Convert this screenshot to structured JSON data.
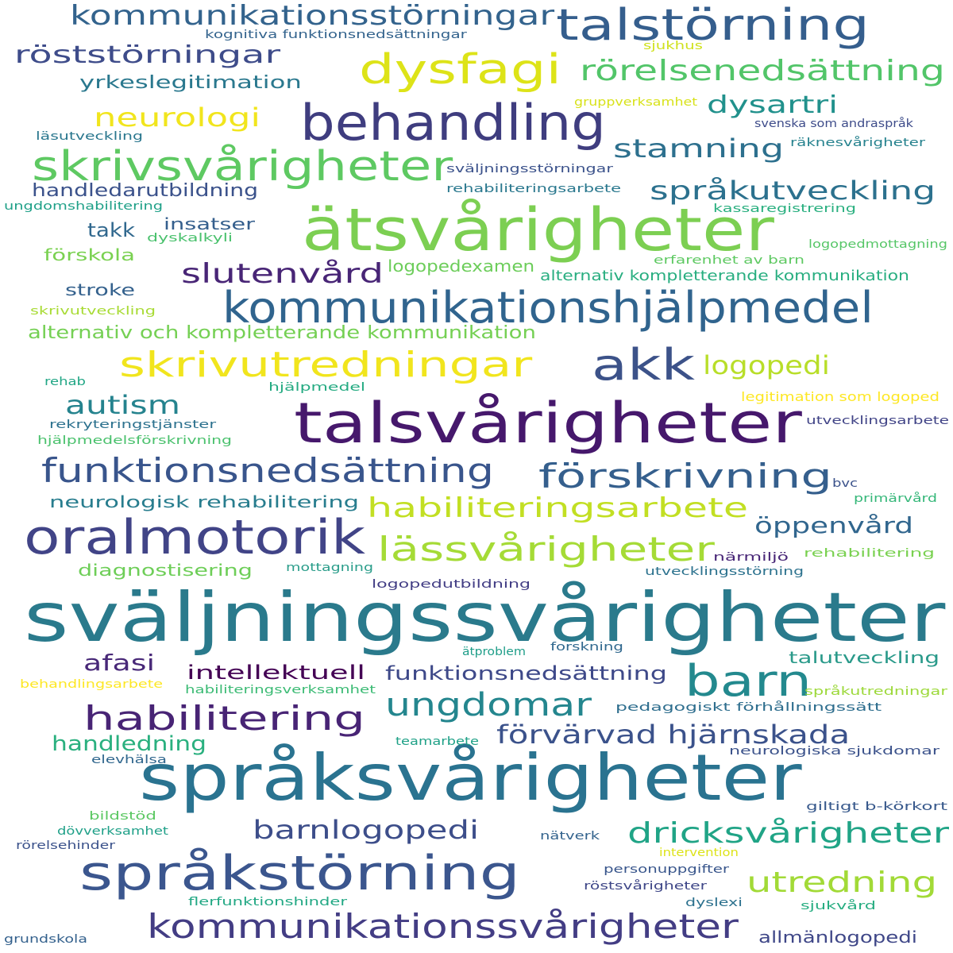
{
  "words": [
    {
      "text": "sväljningssvårigheter",
      "color": "#2a7a8c"
    },
    {
      "text": "språksvårigheter",
      "color": "#2a7390"
    },
    {
      "text": "ätsvårigheter",
      "color": "#7ccf52"
    },
    {
      "text": "talsvårigheter",
      "color": "#46186c"
    },
    {
      "text": "behandling",
      "color": "#3f3d7f"
    },
    {
      "text": "språkstörning",
      "color": "#3b568e"
    },
    {
      "text": "oralmotorik",
      "color": "#414487"
    },
    {
      "text": "kommunikationshjälpmedel",
      "color": "#30648e"
    },
    {
      "text": "talstörning",
      "color": "#355e8d"
    },
    {
      "text": "akk",
      "color": "#3c5289"
    },
    {
      "text": "barn",
      "color": "#23898e"
    },
    {
      "text": "skrivsvårigheter",
      "color": "#5ec962"
    },
    {
      "text": "dysfagi",
      "color": "#dde318"
    },
    {
      "text": "kommunikationssvårigheter",
      "color": "#433d84"
    },
    {
      "text": "skrivutredningar",
      "color": "#f1e51d"
    },
    {
      "text": "funktionsnedsättning",
      "color": "#39558c"
    },
    {
      "text": "förskrivning",
      "color": "#355f8d"
    },
    {
      "text": "lässvårigheter",
      "color": "#a5db36"
    },
    {
      "text": "habilitering",
      "color": "#482475"
    },
    {
      "text": "ungdomar",
      "color": "#24868e"
    },
    {
      "text": "kommunikationsstörningar",
      "color": "#33638d"
    },
    {
      "text": "rörelsenedsättning",
      "color": "#52c569"
    },
    {
      "text": "habiliteringsarbete",
      "color": "#c2df23"
    },
    {
      "text": "dricksvårigheter",
      "color": "#20a486"
    },
    {
      "text": "utredning",
      "color": "#a2da37"
    },
    {
      "text": "förvärvad hjärnskada",
      "color": "#3b528b"
    },
    {
      "text": "språkutveckling",
      "color": "#2c718e"
    },
    {
      "text": "röststörningar",
      "color": "#3e4c8a"
    },
    {
      "text": "stamning",
      "color": "#2d708e"
    },
    {
      "text": "slutenvård",
      "color": "#482576"
    },
    {
      "text": "barnlogopedi",
      "color": "#3d4e8a"
    },
    {
      "text": "neurologi",
      "color": "#f1e51d"
    },
    {
      "text": "autism",
      "color": "#25838e"
    },
    {
      "text": "logopedi",
      "color": "#b8de29"
    },
    {
      "text": "dysartri",
      "color": "#21918c"
    },
    {
      "text": "afasi",
      "color": "#482878"
    },
    {
      "text": "öppenvård",
      "color": "#31668e"
    },
    {
      "text": "intellektuell",
      "color": "#440154"
    },
    {
      "text": "funktionsnedsättning",
      "color": "#3e4989"
    },
    {
      "text": "allmänlogopedi",
      "color": "#3f4788"
    },
    {
      "text": "yrkeslegitimation",
      "color": "#2a788e"
    },
    {
      "text": "handledarutbildning",
      "color": "#3b528b"
    },
    {
      "text": "handledning",
      "color": "#2ab07f"
    },
    {
      "text": "alternativ och kompletterande kommunikation",
      "color": "#75d054"
    },
    {
      "text": "neurologisk rehabilitering",
      "color": "#287d8e"
    },
    {
      "text": "diagnostisering",
      "color": "#6ece58"
    },
    {
      "text": "insatser",
      "color": "#355f8d"
    },
    {
      "text": "takk",
      "color": "#31688e"
    },
    {
      "text": "förskola",
      "color": "#7ad151"
    },
    {
      "text": "stroke",
      "color": "#34618d"
    },
    {
      "text": "logopedexamen",
      "color": "#6ccd5a"
    },
    {
      "text": "talutveckling",
      "color": "#2a9a8a"
    },
    {
      "text": "alternativ kompletterande kommunikation",
      "color": "#28ae80"
    },
    {
      "text": "kognitiva funktionsnedsättningar",
      "color": "#33638d"
    },
    {
      "text": "sjukhus",
      "color": "#cfe11c"
    },
    {
      "text": "gruppverksamhet",
      "color": "#d8e219"
    },
    {
      "text": "svenska som andraspråk",
      "color": "#3e4c8a"
    },
    {
      "text": "räknesvårigheter",
      "color": "#26828e"
    },
    {
      "text": "läsutveckling",
      "color": "#2a778e"
    },
    {
      "text": "sväljningsstörningar",
      "color": "#3b528b"
    },
    {
      "text": "rehabiliteringsarbete",
      "color": "#2a788e"
    },
    {
      "text": "ungdomshabilitering",
      "color": "#1fa088"
    },
    {
      "text": "kassaregistrering",
      "color": "#29af7f"
    },
    {
      "text": "dyskalkyli",
      "color": "#4ac16d"
    },
    {
      "text": "logopedmottagning",
      "color": "#56c667"
    },
    {
      "text": "erfarenhet av barn",
      "color": "#5ec962"
    },
    {
      "text": "skrivutveckling",
      "color": "#a8db34"
    },
    {
      "text": "rehab",
      "color": "#21a685"
    },
    {
      "text": "hjälpmedel",
      "color": "#25ab82"
    },
    {
      "text": "legitimation som logoped",
      "color": "#fde725"
    },
    {
      "text": "rekryteringstjänster",
      "color": "#2c718e"
    },
    {
      "text": "utvecklingsarbete",
      "color": "#414487"
    },
    {
      "text": "hjälpmedelsförskrivning",
      "color": "#4ac16d"
    },
    {
      "text": "bvc",
      "color": "#3b528b"
    },
    {
      "text": "primärvård",
      "color": "#35b779"
    },
    {
      "text": "närmiljö",
      "color": "#482677"
    },
    {
      "text": "rehabilitering",
      "color": "#7ad151"
    },
    {
      "text": "mottagning",
      "color": "#2a9d8a"
    },
    {
      "text": "utvecklingsstörning",
      "color": "#2c728e"
    },
    {
      "text": "logopedutbildning",
      "color": "#433e85"
    },
    {
      "text": "ätproblem",
      "color": "#1f9e89"
    },
    {
      "text": "forskning",
      "color": "#30688e"
    },
    {
      "text": "behandlingsarbete",
      "color": "#fde725"
    },
    {
      "text": "habiliteringsverksamhet",
      "color": "#3cbb75"
    },
    {
      "text": "språkutredningar",
      "color": "#9dd93b"
    },
    {
      "text": "pedagogiskt förhållningssätt",
      "color": "#2e6e8e"
    },
    {
      "text": "teamarbete",
      "color": "#1fa187"
    },
    {
      "text": "elevhälsa",
      "color": "#31678e"
    },
    {
      "text": "neurologiska sjukdomar",
      "color": "#3b528b"
    },
    {
      "text": "bildstöd",
      "color": "#5cc863"
    },
    {
      "text": "giltigt b-körkort",
      "color": "#38598c"
    },
    {
      "text": "dövverksamhet",
      "color": "#1fa088"
    },
    {
      "text": "nätverk",
      "color": "#33638d"
    },
    {
      "text": "rörelsehinder",
      "color": "#3b528b"
    },
    {
      "text": "intervention",
      "color": "#dde318"
    },
    {
      "text": "personuppgifter",
      "color": "#39568c"
    },
    {
      "text": "röstsvårigheter",
      "color": "#3f4788"
    },
    {
      "text": "flerfunktionshinder",
      "color": "#22a884"
    },
    {
      "text": "dyslexi",
      "color": "#2c718e"
    },
    {
      "text": "sjukvård",
      "color": "#27ad81"
    },
    {
      "text": "grundskola",
      "color": "#34618d"
    }
  ]
}
